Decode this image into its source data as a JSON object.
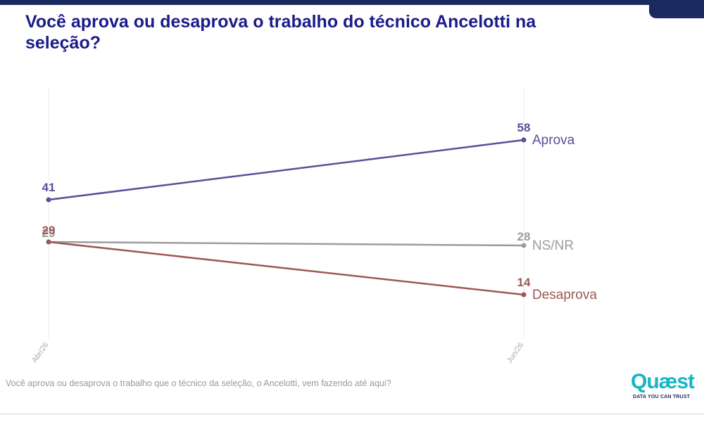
{
  "title": "Você aprova ou desaprova o trabalho do técnico Ancelotti na seleção?",
  "footnote": "Você aprova ou desaprova o trabalho que o técnico da seleção, o Ancelotti, vem fazendo até aqui?",
  "logo": {
    "word": "Quæst",
    "tagline": "DATA YOU CAN TRUST"
  },
  "colors": {
    "accent_bar": "#1a2a5e",
    "title": "#1b1b8a"
  },
  "chart_data": {
    "type": "line",
    "x": [
      "Abr/26",
      "Jun/26"
    ],
    "ylim": [
      0,
      70
    ],
    "grid": false,
    "legend": "inline-end-labels",
    "series": [
      {
        "name": "Aprova",
        "values": [
          41,
          58
        ],
        "color": "#565199"
      },
      {
        "name": "NS/NR",
        "values": [
          29,
          28
        ],
        "color": "#9c9c9c"
      },
      {
        "name": "Desaprova",
        "values": [
          29,
          14
        ],
        "color": "#9c5954"
      }
    ]
  }
}
